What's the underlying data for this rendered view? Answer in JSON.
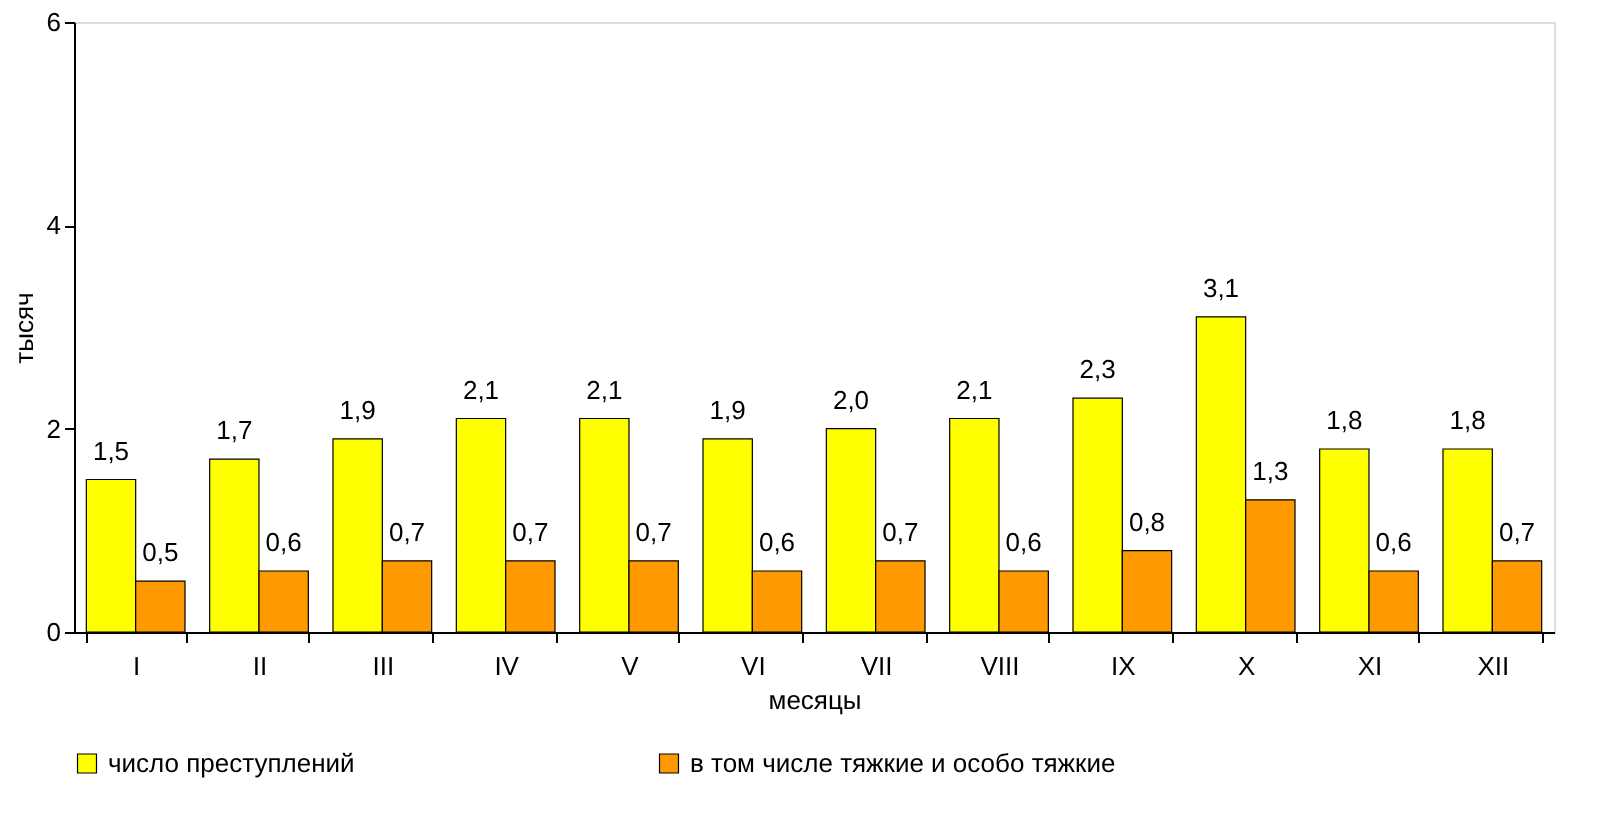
{
  "chart_data": {
    "type": "bar",
    "xlabel": "месяцы",
    "ylabel": "тысяч",
    "categories": [
      "I",
      "II",
      "III",
      "IV",
      "V",
      "VI",
      "VII",
      "VIII",
      "IX",
      "X",
      "XI",
      "XII"
    ],
    "series": [
      {
        "name": "число преступлений",
        "color": "#ffff00",
        "values": [
          1.5,
          1.7,
          1.9,
          2.1,
          2.1,
          1.9,
          2.0,
          2.1,
          2.3,
          3.1,
          1.8,
          1.8
        ],
        "value_labels": [
          "1,5",
          "1,7",
          "1,9",
          "2,1",
          "2,1",
          "1,9",
          "2,0",
          "2,1",
          "2,3",
          "3,1",
          "1,8",
          "1,8"
        ]
      },
      {
        "name": "в том числе тяжкие и особо тяжкие",
        "color": "#ff9900",
        "values": [
          0.5,
          0.6,
          0.7,
          0.7,
          0.7,
          0.6,
          0.7,
          0.6,
          0.8,
          1.3,
          0.6,
          0.7
        ],
        "value_labels": [
          "0,5",
          "0,6",
          "0,7",
          "0,7",
          "0,7",
          "0,6",
          "0,7",
          "0,6",
          "0,8",
          "1,3",
          "0,6",
          "0,7"
        ]
      }
    ],
    "ylim": [
      0,
      6
    ],
    "yticks": [
      0,
      2,
      4,
      6
    ],
    "grid": false,
    "legend": "bottom"
  }
}
